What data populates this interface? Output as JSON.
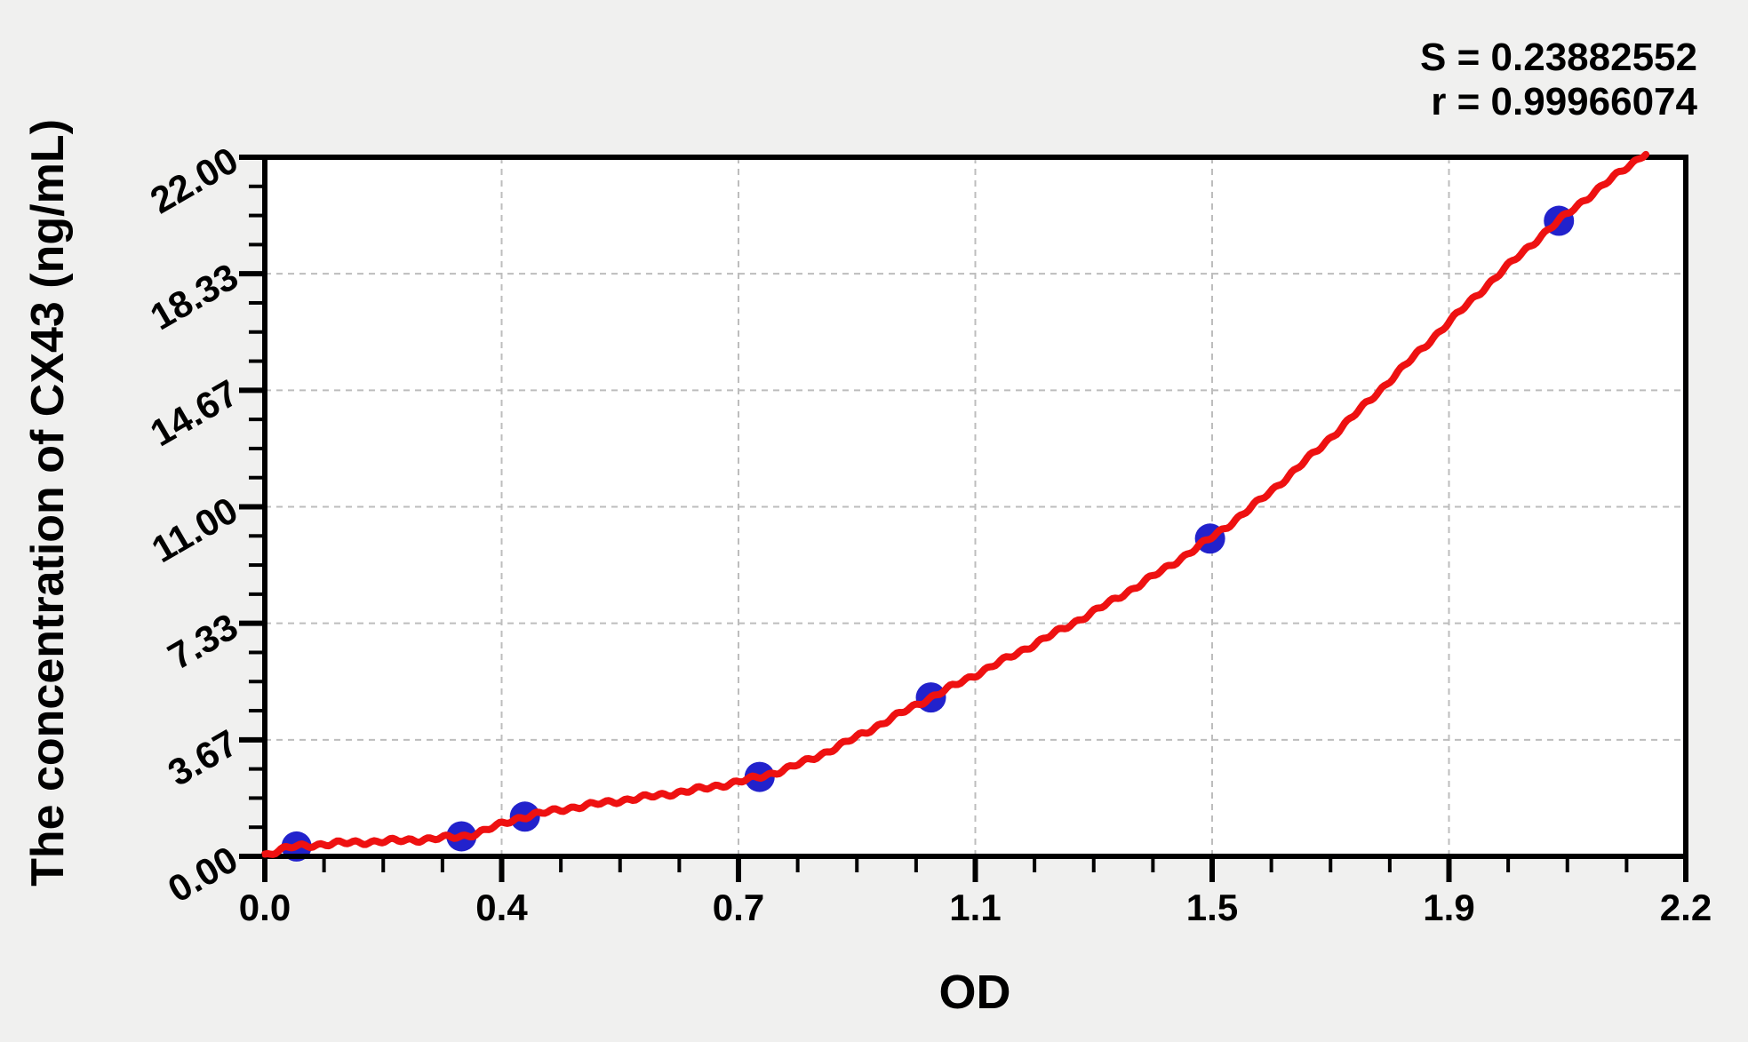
{
  "annotations": {
    "s_label": "S = 0.23882552",
    "r_label": "r = 0.99966074"
  },
  "chart_data": {
    "type": "scatter",
    "title": "",
    "xlabel": "OD",
    "ylabel": "The concentration of CX43 (ng/mL)",
    "x_tick_labels": [
      "0.0",
      "0.4",
      "0.7",
      "1.1",
      "1.5",
      "1.9",
      "2.2"
    ],
    "y_tick_labels": [
      "0.00",
      "3.67",
      "7.33",
      "11.00",
      "14.67",
      "18.33",
      "22.00"
    ],
    "xlim": [
      0,
      2.24
    ],
    "ylim": [
      0,
      22
    ],
    "grid": "dashed-at-major-ticks",
    "legend": "none",
    "points": [
      {
        "od": 0.05,
        "conc": 0.31
      },
      {
        "od": 0.31,
        "conc": 0.63
      },
      {
        "od": 0.41,
        "conc": 1.25
      },
      {
        "od": 0.78,
        "conc": 2.5
      },
      {
        "od": 1.05,
        "conc": 5.0
      },
      {
        "od": 1.49,
        "conc": 10.0
      },
      {
        "od": 2.04,
        "conc": 20.0
      }
    ],
    "fit_curve_anchors": [
      [
        0.0,
        0.05
      ],
      [
        0.05,
        0.31
      ],
      [
        0.31,
        0.63
      ],
      [
        0.41,
        1.25
      ],
      [
        0.78,
        2.5
      ],
      [
        1.05,
        5.0
      ],
      [
        1.49,
        10.0
      ],
      [
        2.04,
        20.0
      ],
      [
        2.22,
        22.8
      ]
    ],
    "colors": {
      "point": "#2222cc",
      "curve": "#ee1111",
      "grid": "#bdbdbd",
      "axis": "#000000",
      "figure_background": "#f0f0ef",
      "plot_background": "#ffffff"
    }
  }
}
